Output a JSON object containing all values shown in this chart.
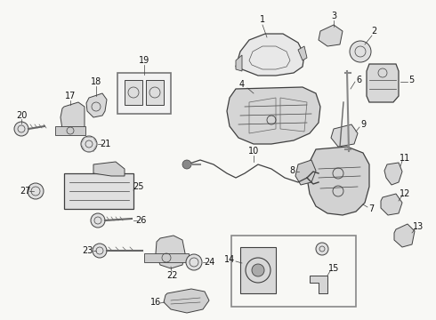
{
  "bg_color": "#f8f8f5",
  "line_color": "#404040",
  "fig_width": 4.9,
  "fig_height": 3.6,
  "dpi": 100
}
